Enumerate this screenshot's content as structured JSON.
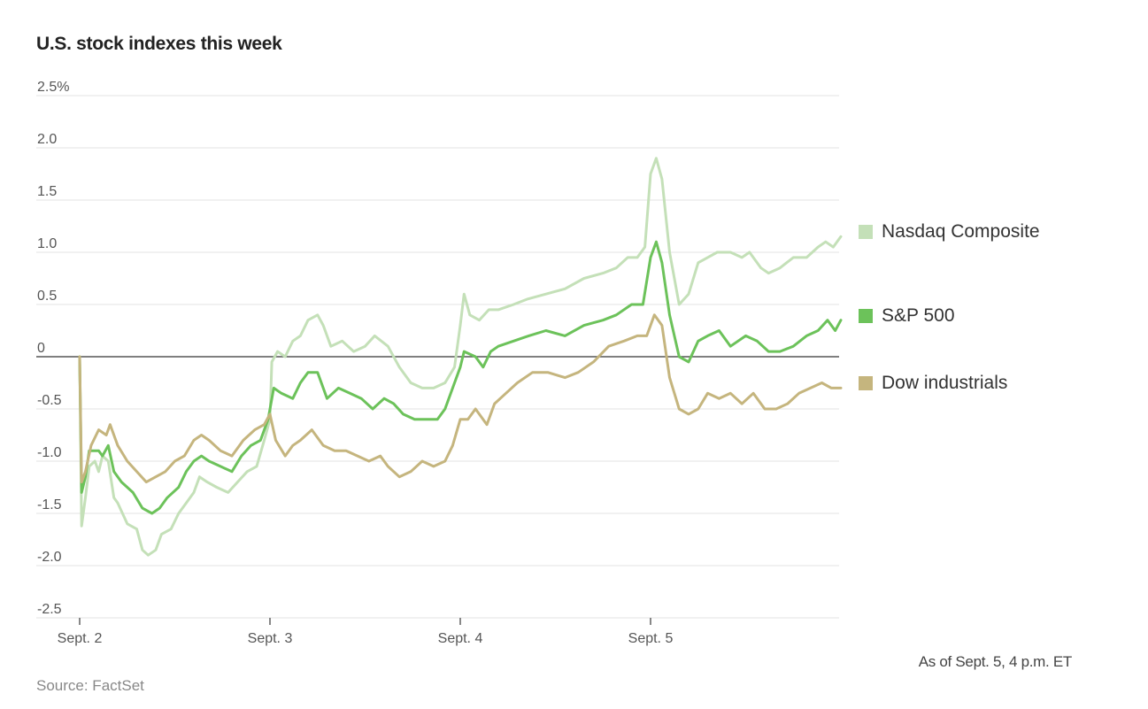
{
  "title": "U.S. stock indexes this week",
  "note": "As of Sept. 5, 4 p.m. ET",
  "source": "Source: FactSet",
  "chart_data": {
    "type": "line",
    "ylim": [
      -2.5,
      2.5
    ],
    "xlim": [
      0,
      4
    ],
    "y_ticks": [
      {
        "value": 2.5,
        "label": "2.5%"
      },
      {
        "value": 2.0,
        "label": "2.0"
      },
      {
        "value": 1.5,
        "label": "1.5"
      },
      {
        "value": 1.0,
        "label": "1.0"
      },
      {
        "value": 0.5,
        "label": "0.5"
      },
      {
        "value": 0,
        "label": "0"
      },
      {
        "value": -0.5,
        "label": "-0.5"
      },
      {
        "value": -1.0,
        "label": "-1.0"
      },
      {
        "value": -1.5,
        "label": "-1.5"
      },
      {
        "value": -2.0,
        "label": "-2.0"
      },
      {
        "value": -2.5,
        "label": "-2.5"
      }
    ],
    "x_ticks": [
      {
        "value": 0,
        "label": "Sept. 2"
      },
      {
        "value": 1,
        "label": "Sept. 3"
      },
      {
        "value": 2,
        "label": "Sept. 4"
      },
      {
        "value": 3,
        "label": "Sept. 5"
      }
    ],
    "grid": true,
    "legend_position": "right",
    "series": [
      {
        "name": "Nasdaq Composite",
        "color": "#c4e0b8",
        "points": [
          [
            0,
            0.0
          ],
          [
            0.01,
            -1.62
          ],
          [
            0.03,
            -1.35
          ],
          [
            0.05,
            -1.05
          ],
          [
            0.08,
            -1.0
          ],
          [
            0.1,
            -1.1
          ],
          [
            0.12,
            -0.95
          ],
          [
            0.15,
            -1.0
          ],
          [
            0.18,
            -1.35
          ],
          [
            0.2,
            -1.4
          ],
          [
            0.25,
            -1.6
          ],
          [
            0.3,
            -1.65
          ],
          [
            0.33,
            -1.85
          ],
          [
            0.36,
            -1.9
          ],
          [
            0.4,
            -1.85
          ],
          [
            0.43,
            -1.7
          ],
          [
            0.48,
            -1.65
          ],
          [
            0.52,
            -1.5
          ],
          [
            0.56,
            -1.4
          ],
          [
            0.6,
            -1.3
          ],
          [
            0.63,
            -1.15
          ],
          [
            0.67,
            -1.2
          ],
          [
            0.72,
            -1.25
          ],
          [
            0.78,
            -1.3
          ],
          [
            0.83,
            -1.2
          ],
          [
            0.88,
            -1.1
          ],
          [
            0.93,
            -1.05
          ],
          [
            0.97,
            -0.8
          ],
          [
            1.0,
            -0.6
          ],
          [
            1.01,
            -0.05
          ],
          [
            1.04,
            0.05
          ],
          [
            1.08,
            0.0
          ],
          [
            1.12,
            0.15
          ],
          [
            1.16,
            0.2
          ],
          [
            1.2,
            0.35
          ],
          [
            1.25,
            0.4
          ],
          [
            1.28,
            0.3
          ],
          [
            1.32,
            0.1
          ],
          [
            1.38,
            0.15
          ],
          [
            1.44,
            0.05
          ],
          [
            1.5,
            0.1
          ],
          [
            1.55,
            0.2
          ],
          [
            1.62,
            0.1
          ],
          [
            1.68,
            -0.1
          ],
          [
            1.74,
            -0.25
          ],
          [
            1.8,
            -0.3
          ],
          [
            1.86,
            -0.3
          ],
          [
            1.92,
            -0.25
          ],
          [
            1.97,
            -0.1
          ],
          [
            2.0,
            0.3
          ],
          [
            2.02,
            0.6
          ],
          [
            2.05,
            0.4
          ],
          [
            2.1,
            0.35
          ],
          [
            2.15,
            0.45
          ],
          [
            2.2,
            0.45
          ],
          [
            2.28,
            0.5
          ],
          [
            2.35,
            0.55
          ],
          [
            2.45,
            0.6
          ],
          [
            2.55,
            0.65
          ],
          [
            2.65,
            0.75
          ],
          [
            2.75,
            0.8
          ],
          [
            2.82,
            0.85
          ],
          [
            2.88,
            0.95
          ],
          [
            2.93,
            0.95
          ],
          [
            2.97,
            1.05
          ],
          [
            3.0,
            1.75
          ],
          [
            3.03,
            1.9
          ],
          [
            3.06,
            1.7
          ],
          [
            3.1,
            1.0
          ],
          [
            3.15,
            0.5
          ],
          [
            3.2,
            0.6
          ],
          [
            3.25,
            0.9
          ],
          [
            3.3,
            0.95
          ],
          [
            3.35,
            1.0
          ],
          [
            3.42,
            1.0
          ],
          [
            3.48,
            0.95
          ],
          [
            3.52,
            1.0
          ],
          [
            3.58,
            0.85
          ],
          [
            3.62,
            0.8
          ],
          [
            3.68,
            0.85
          ],
          [
            3.75,
            0.95
          ],
          [
            3.82,
            0.95
          ],
          [
            3.88,
            1.05
          ],
          [
            3.92,
            1.1
          ],
          [
            3.96,
            1.05
          ],
          [
            4.0,
            1.15
          ]
        ]
      },
      {
        "name": "S&P 500",
        "color": "#6cc25a",
        "points": [
          [
            0,
            0.0
          ],
          [
            0.01,
            -1.3
          ],
          [
            0.03,
            -1.15
          ],
          [
            0.05,
            -0.9
          ],
          [
            0.1,
            -0.9
          ],
          [
            0.12,
            -0.95
          ],
          [
            0.15,
            -0.85
          ],
          [
            0.18,
            -1.1
          ],
          [
            0.22,
            -1.2
          ],
          [
            0.28,
            -1.3
          ],
          [
            0.33,
            -1.45
          ],
          [
            0.38,
            -1.5
          ],
          [
            0.42,
            -1.45
          ],
          [
            0.46,
            -1.35
          ],
          [
            0.52,
            -1.25
          ],
          [
            0.56,
            -1.1
          ],
          [
            0.6,
            -1.0
          ],
          [
            0.64,
            -0.95
          ],
          [
            0.68,
            -1.0
          ],
          [
            0.74,
            -1.05
          ],
          [
            0.8,
            -1.1
          ],
          [
            0.85,
            -0.95
          ],
          [
            0.9,
            -0.85
          ],
          [
            0.95,
            -0.8
          ],
          [
            0.99,
            -0.6
          ],
          [
            1.02,
            -0.3
          ],
          [
            1.06,
            -0.35
          ],
          [
            1.12,
            -0.4
          ],
          [
            1.16,
            -0.25
          ],
          [
            1.2,
            -0.15
          ],
          [
            1.25,
            -0.15
          ],
          [
            1.3,
            -0.4
          ],
          [
            1.36,
            -0.3
          ],
          [
            1.42,
            -0.35
          ],
          [
            1.48,
            -0.4
          ],
          [
            1.54,
            -0.5
          ],
          [
            1.6,
            -0.4
          ],
          [
            1.65,
            -0.45
          ],
          [
            1.7,
            -0.55
          ],
          [
            1.76,
            -0.6
          ],
          [
            1.82,
            -0.6
          ],
          [
            1.88,
            -0.6
          ],
          [
            1.92,
            -0.5
          ],
          [
            1.96,
            -0.3
          ],
          [
            2.0,
            -0.1
          ],
          [
            2.02,
            0.05
          ],
          [
            2.08,
            0.0
          ],
          [
            2.12,
            -0.1
          ],
          [
            2.16,
            0.05
          ],
          [
            2.2,
            0.1
          ],
          [
            2.28,
            0.15
          ],
          [
            2.36,
            0.2
          ],
          [
            2.45,
            0.25
          ],
          [
            2.55,
            0.2
          ],
          [
            2.65,
            0.3
          ],
          [
            2.75,
            0.35
          ],
          [
            2.82,
            0.4
          ],
          [
            2.9,
            0.5
          ],
          [
            2.96,
            0.5
          ],
          [
            3.0,
            0.95
          ],
          [
            3.03,
            1.1
          ],
          [
            3.06,
            0.9
          ],
          [
            3.1,
            0.4
          ],
          [
            3.15,
            0.0
          ],
          [
            3.2,
            -0.05
          ],
          [
            3.25,
            0.15
          ],
          [
            3.3,
            0.2
          ],
          [
            3.36,
            0.25
          ],
          [
            3.42,
            0.1
          ],
          [
            3.5,
            0.2
          ],
          [
            3.56,
            0.15
          ],
          [
            3.62,
            0.05
          ],
          [
            3.68,
            0.05
          ],
          [
            3.75,
            0.1
          ],
          [
            3.82,
            0.2
          ],
          [
            3.88,
            0.25
          ],
          [
            3.93,
            0.35
          ],
          [
            3.97,
            0.25
          ],
          [
            4.0,
            0.35
          ]
        ]
      },
      {
        "name": "Dow industrials",
        "color": "#c5b57e",
        "points": [
          [
            0,
            0.0
          ],
          [
            0.01,
            -1.2
          ],
          [
            0.03,
            -1.1
          ],
          [
            0.06,
            -0.85
          ],
          [
            0.1,
            -0.7
          ],
          [
            0.14,
            -0.75
          ],
          [
            0.16,
            -0.65
          ],
          [
            0.2,
            -0.85
          ],
          [
            0.25,
            -1.0
          ],
          [
            0.3,
            -1.1
          ],
          [
            0.35,
            -1.2
          ],
          [
            0.4,
            -1.15
          ],
          [
            0.45,
            -1.1
          ],
          [
            0.5,
            -1.0
          ],
          [
            0.55,
            -0.95
          ],
          [
            0.6,
            -0.8
          ],
          [
            0.64,
            -0.75
          ],
          [
            0.68,
            -0.8
          ],
          [
            0.74,
            -0.9
          ],
          [
            0.8,
            -0.95
          ],
          [
            0.86,
            -0.8
          ],
          [
            0.92,
            -0.7
          ],
          [
            0.97,
            -0.65
          ],
          [
            1.0,
            -0.55
          ],
          [
            1.03,
            -0.8
          ],
          [
            1.08,
            -0.95
          ],
          [
            1.12,
            -0.85
          ],
          [
            1.16,
            -0.8
          ],
          [
            1.22,
            -0.7
          ],
          [
            1.28,
            -0.85
          ],
          [
            1.34,
            -0.9
          ],
          [
            1.4,
            -0.9
          ],
          [
            1.46,
            -0.95
          ],
          [
            1.52,
            -1.0
          ],
          [
            1.58,
            -0.95
          ],
          [
            1.62,
            -1.05
          ],
          [
            1.68,
            -1.15
          ],
          [
            1.74,
            -1.1
          ],
          [
            1.8,
            -1.0
          ],
          [
            1.86,
            -1.05
          ],
          [
            1.92,
            -1.0
          ],
          [
            1.96,
            -0.85
          ],
          [
            2.0,
            -0.6
          ],
          [
            2.04,
            -0.6
          ],
          [
            2.08,
            -0.5
          ],
          [
            2.1,
            -0.55
          ],
          [
            2.14,
            -0.65
          ],
          [
            2.18,
            -0.45
          ],
          [
            2.24,
            -0.35
          ],
          [
            2.3,
            -0.25
          ],
          [
            2.38,
            -0.15
          ],
          [
            2.46,
            -0.15
          ],
          [
            2.55,
            -0.2
          ],
          [
            2.62,
            -0.15
          ],
          [
            2.7,
            -0.05
          ],
          [
            2.78,
            0.1
          ],
          [
            2.86,
            0.15
          ],
          [
            2.93,
            0.2
          ],
          [
            2.98,
            0.2
          ],
          [
            3.02,
            0.4
          ],
          [
            3.06,
            0.3
          ],
          [
            3.1,
            -0.2
          ],
          [
            3.15,
            -0.5
          ],
          [
            3.2,
            -0.55
          ],
          [
            3.25,
            -0.5
          ],
          [
            3.3,
            -0.35
          ],
          [
            3.36,
            -0.4
          ],
          [
            3.42,
            -0.35
          ],
          [
            3.48,
            -0.45
          ],
          [
            3.54,
            -0.35
          ],
          [
            3.6,
            -0.5
          ],
          [
            3.66,
            -0.5
          ],
          [
            3.72,
            -0.45
          ],
          [
            3.78,
            -0.35
          ],
          [
            3.84,
            -0.3
          ],
          [
            3.9,
            -0.25
          ],
          [
            3.95,
            -0.3
          ],
          [
            4.0,
            -0.3
          ]
        ]
      }
    ]
  }
}
